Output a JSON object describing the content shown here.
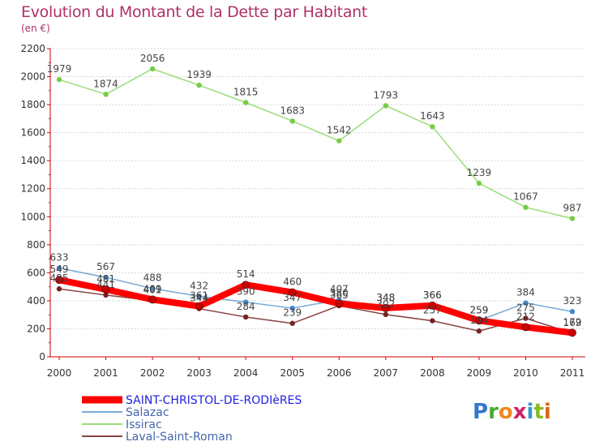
{
  "chart_data": {
    "type": "line",
    "title": "Evolution du Montant de la Dette par Habitant",
    "subtitle": "(en €)",
    "x": [
      "2000",
      "2001",
      "2002",
      "2003",
      "2004",
      "2005",
      "2006",
      "2007",
      "2008",
      "2009",
      "2010",
      "2011"
    ],
    "ylim": [
      0,
      2200
    ],
    "yticks": [
      0,
      200,
      400,
      600,
      800,
      1000,
      1200,
      1400,
      1600,
      1800,
      2000,
      2200
    ],
    "grid": true,
    "legend_position": "bottom-left",
    "series": [
      {
        "name": "Issirac",
        "color": "#99dd77",
        "marker": "#77cc44",
        "values": [
          1979,
          1874,
          2056,
          1939,
          1815,
          1683,
          1542,
          1793,
          1643,
          1239,
          1067,
          987
        ]
      },
      {
        "name": "Salazac",
        "color": "#77aad6",
        "marker": "#4488cc",
        "values": [
          633,
          567,
          488,
          432,
          390,
          347,
          407,
          348,
          366,
          259,
          384,
          323
        ]
      },
      {
        "name": "Laval-Saint-Roman",
        "color": "#884444",
        "marker": "#772222",
        "values": [
          485,
          441,
          401,
          344,
          284,
          239,
          365,
          302,
          257,
          184,
          275,
          169
        ]
      },
      {
        "name": "SAINT-CHRISTOL-DE-RODIèRES",
        "color": "#ff0000",
        "marker": "#cc0000",
        "thick": true,
        "values": [
          549,
          481,
          409,
          361,
          514,
          460,
          380,
          348,
          366,
          259,
          212,
          172
        ]
      }
    ],
    "legend_order": [
      "SAINT-CHRISTOL-DE-RODIèRES",
      "Salazac",
      "Issirac",
      "Laval-Saint-Roman"
    ]
  },
  "logo": {
    "text": "Proxiti"
  }
}
